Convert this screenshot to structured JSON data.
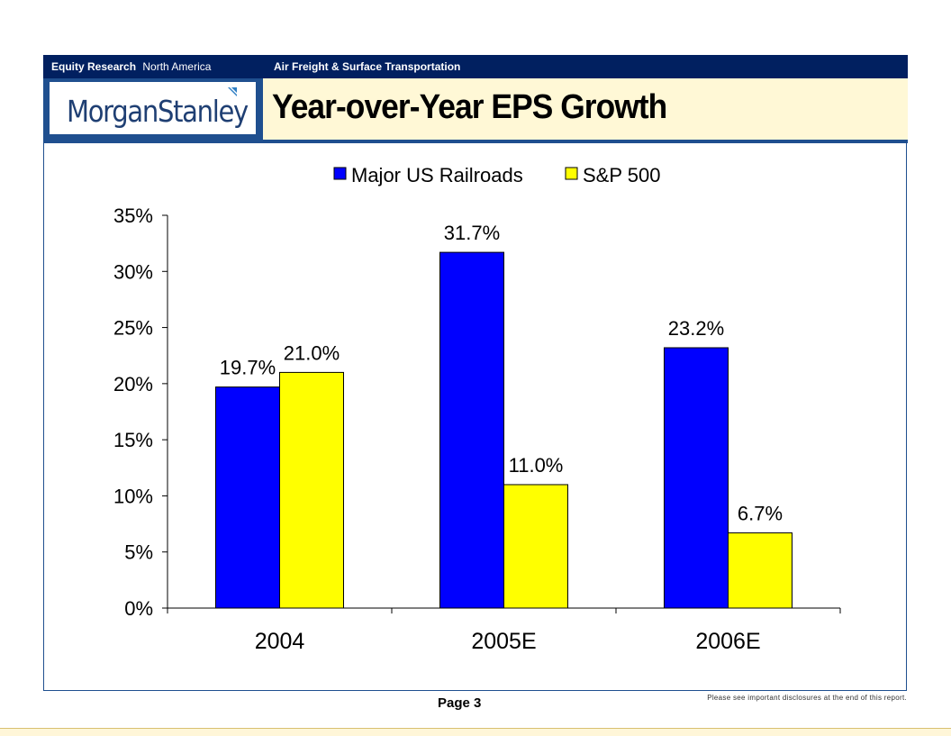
{
  "header": {
    "division": "Equity Research",
    "region": "North America",
    "sector": "Air Freight & Surface Transportation"
  },
  "brand": {
    "name_part1": "Morgan",
    "name_part2": "Stanley"
  },
  "title": "Year-over-Year EPS Growth",
  "footer": {
    "page": "Page 3",
    "disclosure": "Please see important disclosures at the end of this report."
  },
  "chart_data": {
    "type": "bar",
    "categories": [
      "2004",
      "2005E",
      "2006E"
    ],
    "series": [
      {
        "name": "Major US Railroads",
        "color": "#0000ff",
        "values": [
          19.7,
          31.7,
          23.2
        ],
        "labels": [
          "19.7%",
          "31.7%",
          "23.2%"
        ]
      },
      {
        "name": "S&P 500",
        "color": "#ffff00",
        "values": [
          21.0,
          11.0,
          6.7
        ],
        "labels": [
          "21.0%",
          "11.0%",
          "6.7%"
        ]
      }
    ],
    "yticks": [
      "0%",
      "5%",
      "10%",
      "15%",
      "20%",
      "25%",
      "30%",
      "35%"
    ],
    "ylim": [
      0,
      35
    ],
    "grid": false,
    "legend": "top-center"
  }
}
